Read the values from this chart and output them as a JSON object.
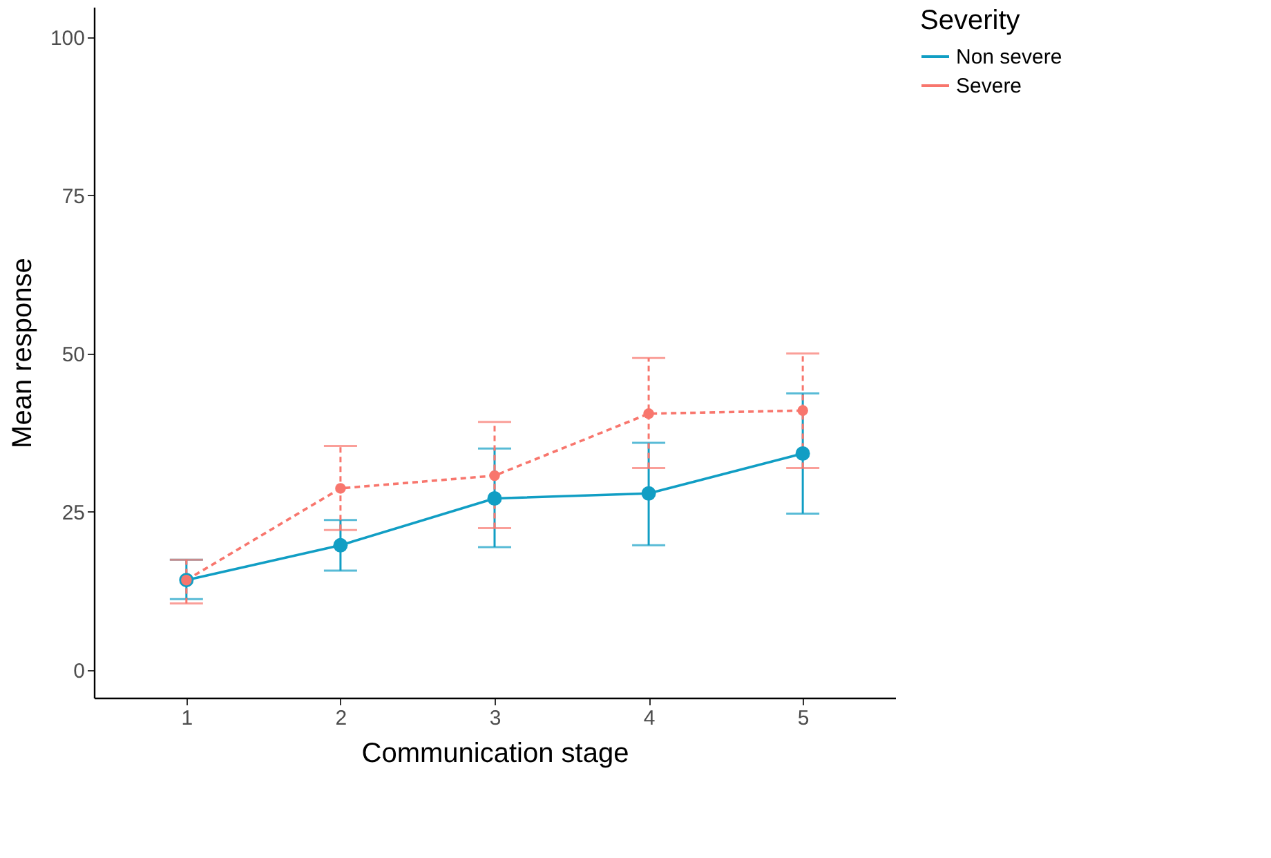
{
  "chart_data": {
    "type": "line",
    "xlabel": "Communication stage",
    "ylabel": "Mean response",
    "legend_title": "Severity",
    "categories": [
      "1",
      "2",
      "3",
      "4",
      "5"
    ],
    "series": [
      {
        "name": "Non severe",
        "color": "#119ec4",
        "line_style": "solid",
        "values": [
          14.2,
          19.7,
          27.1,
          27.9,
          34.2
        ],
        "errors": [
          [
            11.2,
            17.4
          ],
          [
            15.7,
            23.7
          ],
          [
            19.4,
            35
          ],
          [
            19.7,
            35.9
          ],
          [
            24.7,
            43.7
          ]
        ]
      },
      {
        "name": "Severe",
        "color": "#f8766d",
        "line_style": "dashed",
        "values": [
          14.2,
          28.7,
          30.7,
          40.5,
          41
        ],
        "errors": [
          [
            10.5,
            17.4
          ],
          [
            22.1,
            35.4
          ],
          [
            22.4,
            39.2
          ],
          [
            31.9,
            49.3
          ],
          [
            31.9,
            50
          ]
        ]
      }
    ],
    "ylim": [
      -4.4,
      104.8
    ],
    "yticks": [
      0,
      25,
      50,
      75,
      100
    ],
    "grid": false,
    "legend": "right",
    "marker": "circle"
  }
}
